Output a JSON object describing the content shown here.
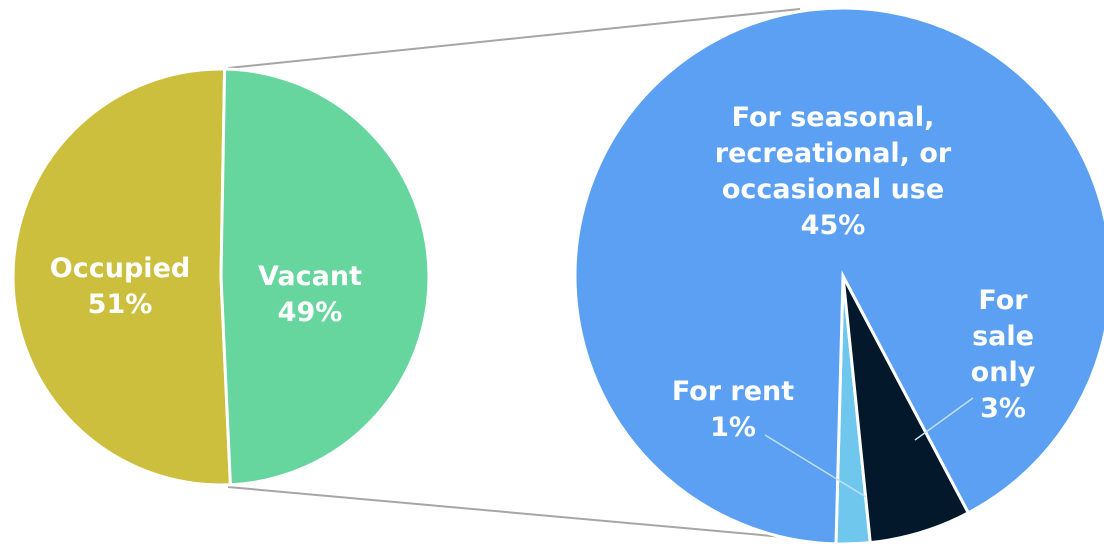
{
  "chart_data": [
    {
      "type": "pie",
      "categories": [
        "Occupied",
        "Vacant"
      ],
      "values": [
        51,
        49
      ],
      "value_labels": [
        "51%",
        "49%"
      ],
      "colors": [
        "#cdbf3e",
        "#66d59e"
      ]
    },
    {
      "type": "pie",
      "categories": [
        "For rent",
        "For sale only",
        "For seasonal, recreational, or occasional use"
      ],
      "values": [
        1,
        3,
        45
      ],
      "value_labels": [
        "1%",
        "3%",
        "45%"
      ],
      "colors": [
        "#6fc7ee",
        "#03182a",
        "#5ba0f2"
      ]
    }
  ]
}
